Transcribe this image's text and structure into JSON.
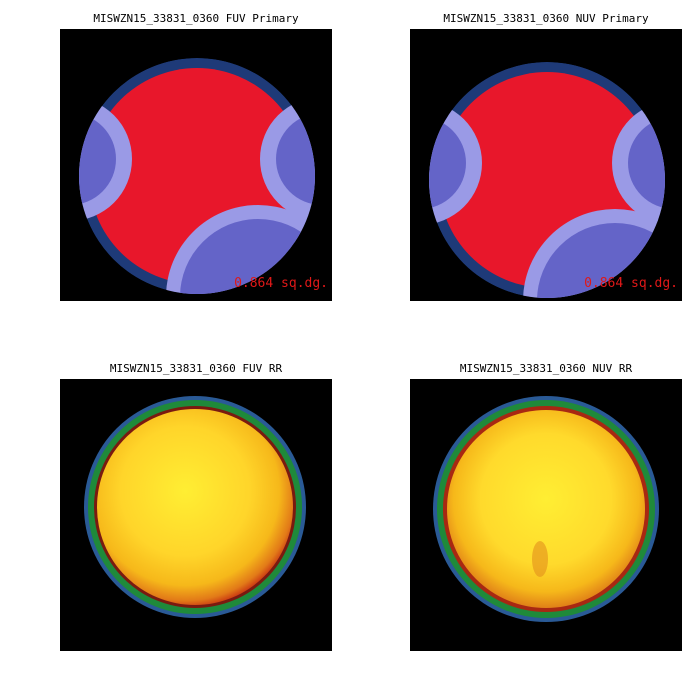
{
  "panels": [
    {
      "title": "MISWZN15_33831_0360 FUV Primary",
      "area_label": "0.864 sq.dg."
    },
    {
      "title": "MISWZN15_33831_0360 NUV Primary",
      "area_label": "0.864 sq.dg."
    },
    {
      "title": "MISWZN15_33831_0360 FUV RR"
    },
    {
      "title": "MISWZN15_33831_0360 NUV RR"
    }
  ],
  "colors": {
    "coverage_red": "#e8172b",
    "rim_dark_blue": "#1e3a78",
    "overlap_blue": "#6464c8",
    "outer_light_blue": "#9a9ae6",
    "label_red": "#e01818",
    "rr_center": "#ffee33",
    "rr_mid": "#f6b81a",
    "rr_edge": "#c83212",
    "rr_ring_green": "#1f8a3a",
    "rr_ring_blue": "#2a5a96"
  }
}
